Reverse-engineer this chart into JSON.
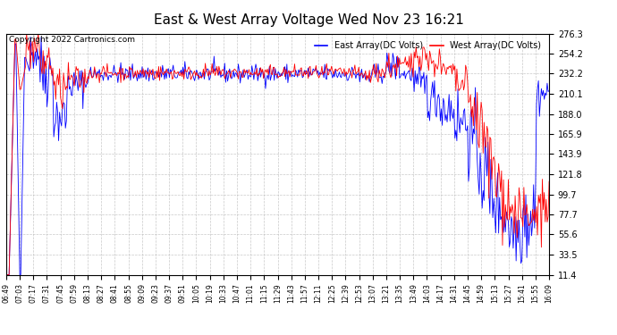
{
  "title": "East & West Array Voltage Wed Nov 23 16:21",
  "title_color": "#000000",
  "copyright_text": "Copyright 2022 Cartronics.com",
  "legend_east": "East Array(DC Volts)",
  "legend_west": "West Array(DC Volts)",
  "east_color": "blue",
  "west_color": "red",
  "background_color": "#ffffff",
  "plot_bg_color": "#ffffff",
  "grid_color": "#bbbbbb",
  "ymin": 11.4,
  "ymax": 276.3,
  "yticks": [
    11.4,
    33.5,
    55.6,
    77.7,
    99.7,
    121.8,
    143.9,
    165.9,
    188.0,
    210.1,
    232.2,
    254.2,
    276.3
  ],
  "x_labels": [
    "06:49",
    "07:03",
    "07:17",
    "07:31",
    "07:45",
    "07:59",
    "08:13",
    "08:27",
    "08:41",
    "08:55",
    "09:09",
    "09:23",
    "09:37",
    "09:51",
    "10:05",
    "10:19",
    "10:33",
    "10:47",
    "11:01",
    "11:15",
    "11:29",
    "11:43",
    "11:57",
    "12:11",
    "12:25",
    "12:39",
    "12:53",
    "13:07",
    "13:21",
    "13:35",
    "13:49",
    "14:03",
    "14:17",
    "14:31",
    "14:45",
    "14:59",
    "15:13",
    "15:27",
    "15:41",
    "15:55",
    "16:09"
  ],
  "title_fontsize": 11,
  "ytick_fontsize": 7,
  "xtick_fontsize": 5.5,
  "legend_fontsize": 7,
  "copyright_fontsize": 6.5,
  "linewidth": 0.6
}
